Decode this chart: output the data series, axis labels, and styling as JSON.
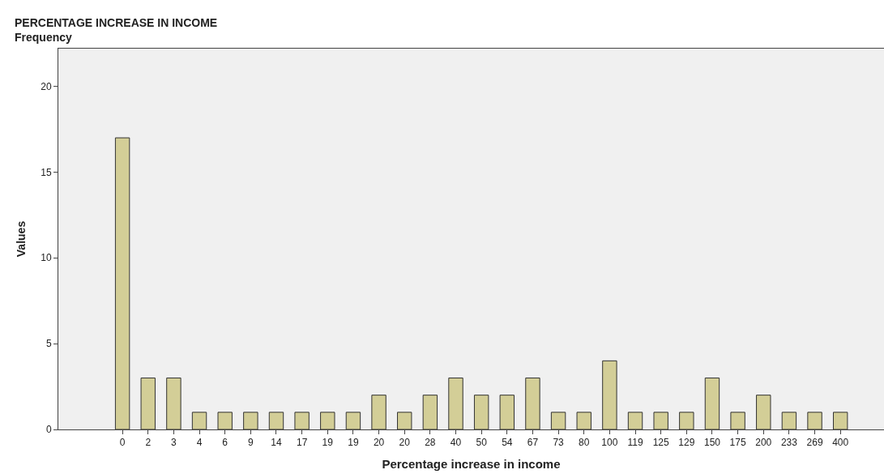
{
  "chart_data": {
    "type": "bar",
    "title": "PERCENTAGE INCREASE IN INCOME",
    "subtitle": "Frequency",
    "xlabel": "Percentage increase in income",
    "ylabel": "Values",
    "categories": [
      "0",
      "2",
      "3",
      "4",
      "6",
      "9",
      "14",
      "17",
      "19",
      "19",
      "20",
      "20",
      "28",
      "40",
      "50",
      "54",
      "67",
      "73",
      "80",
      "100",
      "119",
      "125",
      "129",
      "150",
      "175",
      "200",
      "233",
      "269",
      "400"
    ],
    "values": [
      17,
      3,
      3,
      1,
      1,
      1,
      1,
      1,
      1,
      1,
      2,
      1,
      2,
      3,
      2,
      2,
      3,
      1,
      1,
      4,
      1,
      1,
      1,
      3,
      1,
      2,
      1,
      1,
      1
    ],
    "color": "#d3ce97",
    "ylim": [
      0,
      22.2
    ],
    "yticks": [
      0,
      5,
      10,
      15,
      20
    ]
  }
}
